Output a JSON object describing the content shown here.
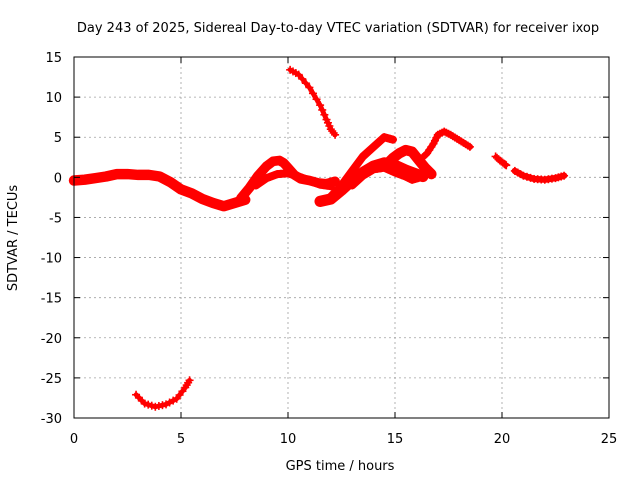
{
  "chart_data": {
    "type": "scatter",
    "title": "Day 243 of 2025, Sidereal Day-to-day VTEC variation (SDTVAR) for receiver ixop",
    "xlabel": "GPS time / hours",
    "ylabel": "SDTVAR / TECUs",
    "xlim": [
      0,
      25
    ],
    "ylim": [
      -30,
      15
    ],
    "xticks": [
      "0",
      "5",
      "10",
      "15",
      "20",
      "25"
    ],
    "xtick_values": [
      0,
      5,
      10,
      15,
      20,
      25
    ],
    "yticks": [
      "15",
      "10",
      "5",
      "0",
      "-5",
      "-10",
      "-15",
      "-20",
      "-25",
      "-30"
    ],
    "ytick_values": [
      15,
      10,
      5,
      0,
      -5,
      -10,
      -15,
      -20,
      -25,
      -30
    ],
    "grid": true,
    "marker": "plus",
    "color": "#ff0000",
    "series": [
      {
        "name": "arc-1",
        "band": 1.3,
        "x": [
          0,
          0.5,
          1.0,
          1.5,
          2.0,
          2.5,
          3.0,
          3.5,
          4.0,
          4.5,
          5.0,
          5.5,
          6.0,
          6.5,
          7.0,
          7.5,
          8.0
        ],
        "y": [
          -0.4,
          -0.3,
          -0.1,
          0.1,
          0.4,
          0.4,
          0.3,
          0.3,
          0.1,
          -0.6,
          -1.5,
          -2.0,
          -2.7,
          -3.2,
          -3.6,
          -3.2,
          -2.8
        ]
      },
      {
        "name": "arc-2",
        "band": 1.2,
        "x": [
          7.8,
          8.2,
          8.6,
          9.0,
          9.3,
          9.6,
          9.8,
          10.0,
          10.3,
          10.6,
          11.0,
          11.4,
          11.8,
          12.2
        ],
        "y": [
          -2.6,
          -1.3,
          0.2,
          1.4,
          2.0,
          2.1,
          1.8,
          1.2,
          0.3,
          -0.2,
          -0.4,
          -0.7,
          -0.8,
          -0.5
        ]
      },
      {
        "name": "arc-3",
        "band": 1.0,
        "x": [
          8.5,
          9.0,
          9.5,
          10.0,
          10.5,
          11.0,
          11.5,
          12.0
        ],
        "y": [
          -1.0,
          -0.1,
          0.4,
          0.5,
          0.1,
          -0.4,
          -0.9,
          -1.1
        ]
      },
      {
        "name": "arc-4",
        "band": 0.6,
        "x": [
          10.1,
          10.5,
          11.0,
          11.5,
          11.8,
          12.0,
          12.2
        ],
        "y": [
          13.4,
          12.8,
          11.2,
          9.0,
          7.2,
          6.0,
          5.3
        ]
      },
      {
        "name": "arc-5",
        "band": 1.4,
        "x": [
          11.5,
          12.0,
          12.5,
          13.0,
          13.5,
          14.0,
          14.5,
          15.0,
          15.5,
          16.0,
          16.3
        ],
        "y": [
          -3.0,
          -2.7,
          -1.6,
          -0.4,
          0.6,
          1.4,
          1.8,
          1.5,
          0.9,
          0.4,
          0.1
        ]
      },
      {
        "name": "arc-6",
        "band": 1.0,
        "x": [
          12.0,
          12.5,
          13.0,
          13.5,
          14.0,
          14.5,
          14.9
        ],
        "y": [
          -2.4,
          -1.0,
          0.8,
          2.6,
          3.8,
          5.0,
          4.7
        ]
      },
      {
        "name": "arc-7",
        "band": 1.0,
        "x": [
          13.0,
          13.5,
          14.0,
          14.5,
          15.0,
          15.5,
          15.8,
          16.2
        ],
        "y": [
          -1.0,
          0.2,
          1.0,
          1.2,
          0.6,
          0.1,
          -0.3,
          0.0
        ]
      },
      {
        "name": "arc-8",
        "band": 1.3,
        "x": [
          14.6,
          14.9,
          15.2,
          15.5,
          15.8,
          16.1,
          16.4,
          16.7
        ],
        "y": [
          1.6,
          2.4,
          3.0,
          3.4,
          3.2,
          2.2,
          1.2,
          0.4
        ]
      },
      {
        "name": "arc-9",
        "band": 0.8,
        "x": [
          16.3,
          16.5,
          16.8,
          17.0,
          17.3,
          17.6,
          17.9,
          18.2,
          18.5
        ],
        "y": [
          2.5,
          3.0,
          4.2,
          5.3,
          5.7,
          5.3,
          4.8,
          4.3,
          3.8
        ]
      },
      {
        "name": "arc-10",
        "band": 0.5,
        "x": [
          19.7,
          19.9,
          20.1,
          20.2
        ],
        "y": [
          2.6,
          2.1,
          1.7,
          1.5
        ]
      },
      {
        "name": "arc-11",
        "band": 0.8,
        "x": [
          20.6,
          21.0,
          21.5,
          22.0,
          22.5,
          22.9
        ],
        "y": [
          0.8,
          0.2,
          -0.2,
          -0.3,
          -0.1,
          0.2
        ]
      },
      {
        "name": "arc-12",
        "band": 0.6,
        "x": [
          2.9,
          3.3,
          3.8,
          4.3,
          4.8,
          5.2,
          5.4
        ],
        "y": [
          -27.1,
          -28.2,
          -28.6,
          -28.3,
          -27.6,
          -26.2,
          -25.3
        ]
      }
    ]
  }
}
